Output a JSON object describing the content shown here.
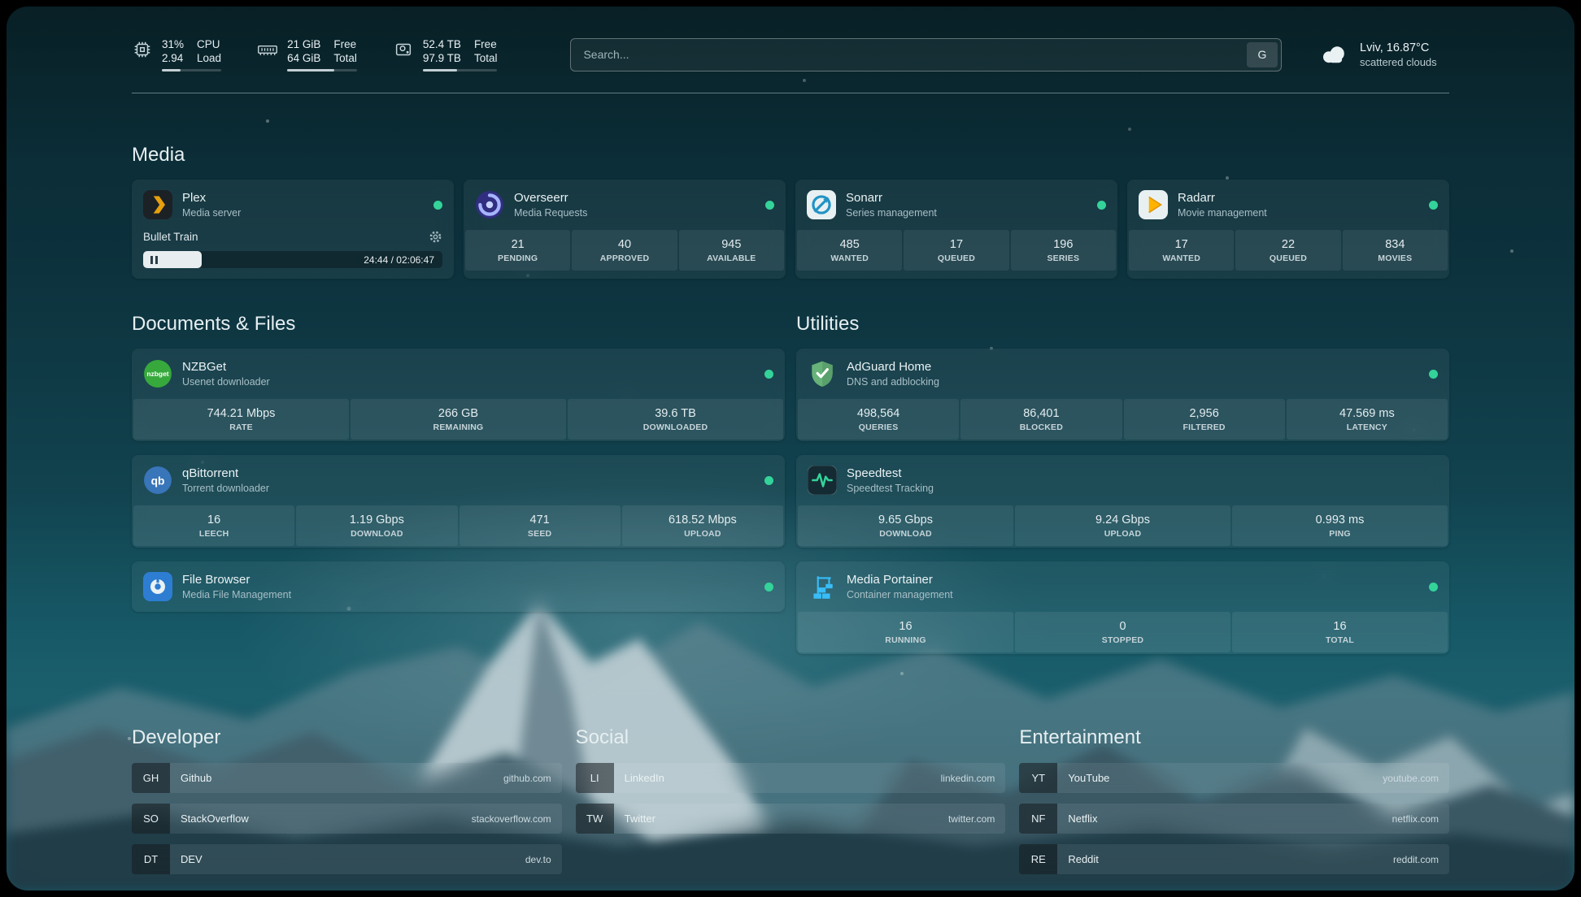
{
  "colors": {
    "status_green": "#34d399",
    "plex_amber": "#e5a00d"
  },
  "topbar": {
    "cpu": {
      "percent": "31%",
      "load": "2.94",
      "label_top": "CPU",
      "label_bottom": "Load",
      "progress": 31
    },
    "memory": {
      "free": "21 GiB",
      "total": "64 GiB",
      "label_top": "Free",
      "label_bottom": "Total",
      "progress": 67
    },
    "disk": {
      "free": "52.4 TB",
      "total": "97.9 TB",
      "label_top": "Free",
      "label_bottom": "Total",
      "progress": 46
    },
    "search": {
      "placeholder": "Search...",
      "provider_label": "G"
    },
    "weather": {
      "location": "Lviv, 16.87°C",
      "condition": "scattered clouds"
    }
  },
  "sections": {
    "media": {
      "title": "Media",
      "services": [
        {
          "name": "Plex",
          "desc": "Media server",
          "player": {
            "title": "Bullet Train",
            "time": "24:44 / 02:06:47",
            "progress": 19.5
          }
        },
        {
          "name": "Overseerr",
          "desc": "Media Requests",
          "stats": [
            {
              "value": "21",
              "label": "PENDING"
            },
            {
              "value": "40",
              "label": "APPROVED"
            },
            {
              "value": "945",
              "label": "AVAILABLE"
            }
          ]
        },
        {
          "name": "Sonarr",
          "desc": "Series management",
          "stats": [
            {
              "value": "485",
              "label": "WANTED"
            },
            {
              "value": "17",
              "label": "QUEUED"
            },
            {
              "value": "196",
              "label": "SERIES"
            }
          ]
        },
        {
          "name": "Radarr",
          "desc": "Movie management",
          "stats": [
            {
              "value": "17",
              "label": "WANTED"
            },
            {
              "value": "22",
              "label": "QUEUED"
            },
            {
              "value": "834",
              "label": "MOVIES"
            }
          ]
        }
      ]
    },
    "documents": {
      "title": "Documents & Files",
      "services": [
        {
          "name": "NZBGet",
          "desc": "Usenet downloader",
          "stats": [
            {
              "value": "744.21 Mbps",
              "label": "RATE"
            },
            {
              "value": "266 GB",
              "label": "REMAINING"
            },
            {
              "value": "39.6 TB",
              "label": "DOWNLOADED"
            }
          ]
        },
        {
          "name": "qBittorrent",
          "desc": "Torrent downloader",
          "stats": [
            {
              "value": "16",
              "label": "LEECH"
            },
            {
              "value": "1.19 Gbps",
              "label": "DOWNLOAD"
            },
            {
              "value": "471",
              "label": "SEED"
            },
            {
              "value": "618.52 Mbps",
              "label": "UPLOAD"
            }
          ]
        },
        {
          "name": "File Browser",
          "desc": "Media File Management",
          "stats": []
        }
      ]
    },
    "utilities": {
      "title": "Utilities",
      "services": [
        {
          "name": "AdGuard Home",
          "desc": "DNS and adblocking",
          "stats": [
            {
              "value": "498,564",
              "label": "QUERIES"
            },
            {
              "value": "86,401",
              "label": "BLOCKED"
            },
            {
              "value": "2,956",
              "label": "FILTERED"
            },
            {
              "value": "47.569 ms",
              "label": "LATENCY"
            }
          ]
        },
        {
          "name": "Speedtest",
          "desc": "Speedtest Tracking",
          "stats": [
            {
              "value": "9.65 Gbps",
              "label": "DOWNLOAD"
            },
            {
              "value": "9.24 Gbps",
              "label": "UPLOAD"
            },
            {
              "value": "0.993 ms",
              "label": "PING"
            }
          ]
        },
        {
          "name": "Media Portainer",
          "desc": "Container management",
          "stats": [
            {
              "value": "16",
              "label": "RUNNING"
            },
            {
              "value": "0",
              "label": "STOPPED"
            },
            {
              "value": "16",
              "label": "TOTAL"
            }
          ]
        }
      ]
    }
  },
  "bookmarks": {
    "groups": [
      {
        "title": "Developer",
        "items": [
          {
            "abbr": "GH",
            "name": "Github",
            "url": "github.com"
          },
          {
            "abbr": "SO",
            "name": "StackOverflow",
            "url": "stackoverflow.com"
          },
          {
            "abbr": "DT",
            "name": "DEV",
            "url": "dev.to"
          }
        ]
      },
      {
        "title": "Social",
        "items": [
          {
            "abbr": "LI",
            "name": "LinkedIn",
            "url": "linkedin.com"
          },
          {
            "abbr": "TW",
            "name": "Twitter",
            "url": "twitter.com"
          }
        ]
      },
      {
        "title": "Entertainment",
        "items": [
          {
            "abbr": "YT",
            "name": "YouTube",
            "url": "youtube.com"
          },
          {
            "abbr": "NF",
            "name": "Netflix",
            "url": "netflix.com"
          },
          {
            "abbr": "RE",
            "name": "Reddit",
            "url": "reddit.com"
          }
        ]
      }
    ]
  }
}
